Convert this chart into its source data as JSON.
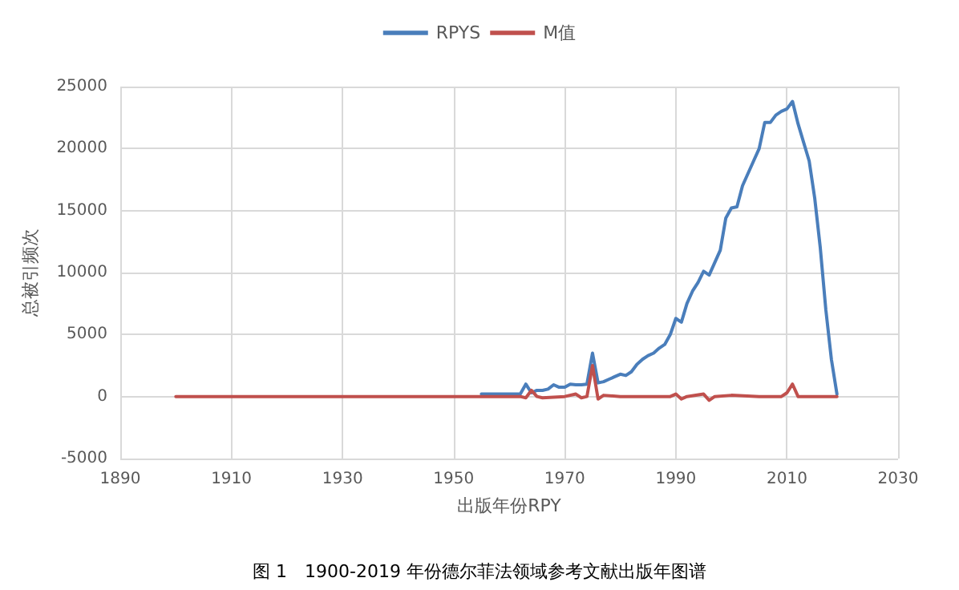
{
  "chart_data": {
    "type": "line",
    "xlabel": "出版年份RPY",
    "ylabel": "总被引频次",
    "annotations": [
      "图 1　1900-2019 年份德尔菲法领域参考文献出版年图谱"
    ],
    "series": [
      {
        "name": "RPYS",
        "color": "#4a7ebb",
        "x": [
          1955,
          1960,
          1962,
          1963,
          1964,
          1965,
          1966,
          1967,
          1968,
          1969,
          1970,
          1971,
          1972,
          1973,
          1974,
          1975,
          1976,
          1977,
          1978,
          1979,
          1980,
          1981,
          1982,
          1983,
          1984,
          1985,
          1986,
          1987,
          1988,
          1989,
          1990,
          1991,
          1992,
          1993,
          1994,
          1995,
          1996,
          1997,
          1998,
          1999,
          2000,
          2001,
          2002,
          2003,
          2004,
          2005,
          2006,
          2007,
          2008,
          2009,
          2010,
          2011,
          2012,
          2013,
          2014,
          2015,
          2016,
          2017,
          2018,
          2019
        ],
        "values": [
          200,
          200,
          200,
          1000,
          300,
          500,
          500,
          600,
          950,
          750,
          750,
          1000,
          950,
          950,
          1000,
          3500,
          1100,
          1200,
          1400,
          1600,
          1800,
          1700,
          2000,
          2600,
          3000,
          3300,
          3500,
          3900,
          4200,
          5000,
          6300,
          6000,
          7500,
          8500,
          9200,
          10100,
          9800,
          10800,
          11800,
          14400,
          15200,
          15300,
          17000,
          18000,
          19000,
          20000,
          22100,
          22100,
          22700,
          23000,
          23200,
          23800,
          22000,
          20500,
          19000,
          16000,
          12000,
          7000,
          3000,
          200
        ]
      },
      {
        "name": "M值",
        "color": "#c0504d",
        "x": [
          1900,
          1930,
          1950,
          1960,
          1962,
          1963,
          1964,
          1965,
          1966,
          1970,
          1972,
          1973,
          1974,
          1975,
          1976,
          1977,
          1980,
          1989,
          1990,
          1991,
          1992,
          1995,
          1996,
          1997,
          2000,
          2005,
          2009,
          2010,
          2011,
          2012,
          2013,
          2019
        ],
        "values": [
          0,
          0,
          0,
          0,
          0,
          -100,
          500,
          0,
          -100,
          0,
          200,
          -100,
          0,
          2500,
          -200,
          100,
          0,
          0,
          200,
          -200,
          0,
          200,
          -300,
          0,
          100,
          0,
          0,
          300,
          1000,
          0,
          0,
          0
        ]
      }
    ],
    "xlim": [
      1890,
      2030
    ],
    "xticks": [
      1890,
      1910,
      1930,
      1950,
      1970,
      1990,
      2010,
      2030
    ],
    "ylim": [
      -5000,
      25000
    ],
    "yticks": [
      -5000,
      0,
      5000,
      10000,
      15000,
      20000,
      25000
    ],
    "grid": true,
    "legend": "top",
    "marker": "none",
    "line_style": "solid"
  }
}
